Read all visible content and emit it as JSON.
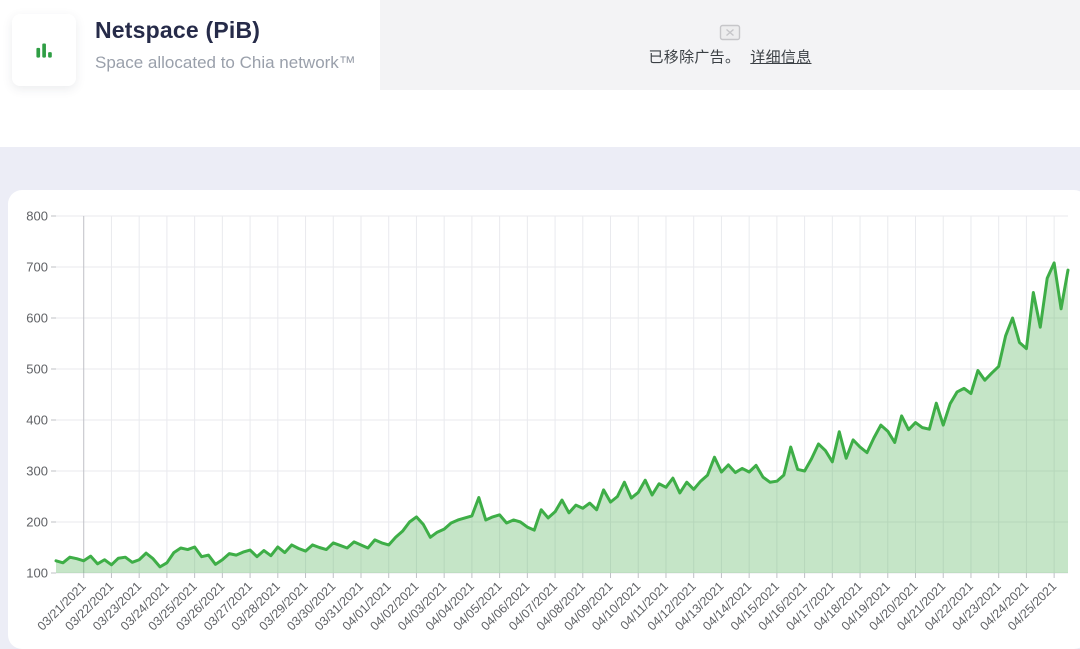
{
  "header": {
    "title": "Netspace (PiB)",
    "subtitle": "Space allocated to Chia network™",
    "icon": "bar-chart-icon"
  },
  "ad_notice": {
    "text": "已移除广告。",
    "link_label": "详细信息",
    "icon": "ad-blocked-icon"
  },
  "colors": {
    "line": "#3eae47",
    "fill": "rgba(76,175,80,0.32)",
    "grid": "#e9eaee",
    "grid_first": "#bfc0c6",
    "axis_label": "#606266",
    "accent_green": "#2f9e44"
  },
  "chart_data": {
    "type": "area",
    "title": "Netspace (PiB)",
    "subtitle": "Space allocated to Chia network™",
    "xlabel": "",
    "ylabel": "",
    "ylim": [
      100,
      800
    ],
    "y_ticks": [
      100,
      200,
      300,
      400,
      500,
      600,
      700,
      800
    ],
    "grid": true,
    "legend": "none",
    "x_tick_labels": [
      "03/21/2021",
      "03/22/2021",
      "03/23/2021",
      "03/24/2021",
      "03/25/2021",
      "03/26/2021",
      "03/27/2021",
      "03/28/2021",
      "03/29/2021",
      "03/30/2021",
      "03/31/2021",
      "04/01/2021",
      "04/02/2021",
      "04/03/2021",
      "04/04/2021",
      "04/05/2021",
      "04/06/2021",
      "04/07/2021",
      "04/08/2021",
      "04/09/2021",
      "04/10/2021",
      "04/11/2021",
      "04/12/2021",
      "04/13/2021",
      "04/14/2021",
      "04/15/2021",
      "04/16/2021",
      "04/17/2021",
      "04/18/2021",
      "04/19/2021",
      "04/20/2021",
      "04/21/2021",
      "04/22/2021",
      "04/23/2021",
      "04/24/2021",
      "04/25/2021"
    ],
    "points_per_day": 4,
    "first_point_offset_days": -1,
    "series": [
      {
        "name": "Netspace (PiB)",
        "values": [
          124,
          120,
          131,
          128,
          124,
          133,
          118,
          126,
          116,
          129,
          131,
          121,
          126,
          139,
          128,
          112,
          120,
          140,
          149,
          146,
          151,
          132,
          135,
          117,
          126,
          138,
          135,
          141,
          145,
          132,
          144,
          134,
          151,
          140,
          155,
          148,
          143,
          155,
          150,
          146,
          159,
          154,
          149,
          161,
          155,
          149,
          165,
          159,
          155,
          170,
          182,
          200,
          210,
          195,
          170,
          180,
          186,
          198,
          204,
          208,
          212,
          248,
          204,
          210,
          214,
          198,
          204,
          200,
          190,
          184,
          224,
          208,
          220,
          243,
          218,
          233,
          227,
          237,
          224,
          263,
          239,
          250,
          278,
          247,
          258,
          282,
          253,
          275,
          268,
          286,
          257,
          278,
          264,
          280,
          292,
          327,
          298,
          312,
          297,
          305,
          298,
          311,
          288,
          278,
          280,
          292,
          347,
          303,
          300,
          324,
          353,
          340,
          318,
          377,
          325,
          361,
          347,
          336,
          365,
          390,
          378,
          356,
          408,
          381,
          395,
          385,
          382,
          433,
          390,
          432,
          455,
          462,
          452,
          497,
          478,
          492,
          505,
          565,
          600,
          552,
          540,
          650,
          582,
          678,
          708,
          618,
          694
        ]
      }
    ]
  }
}
